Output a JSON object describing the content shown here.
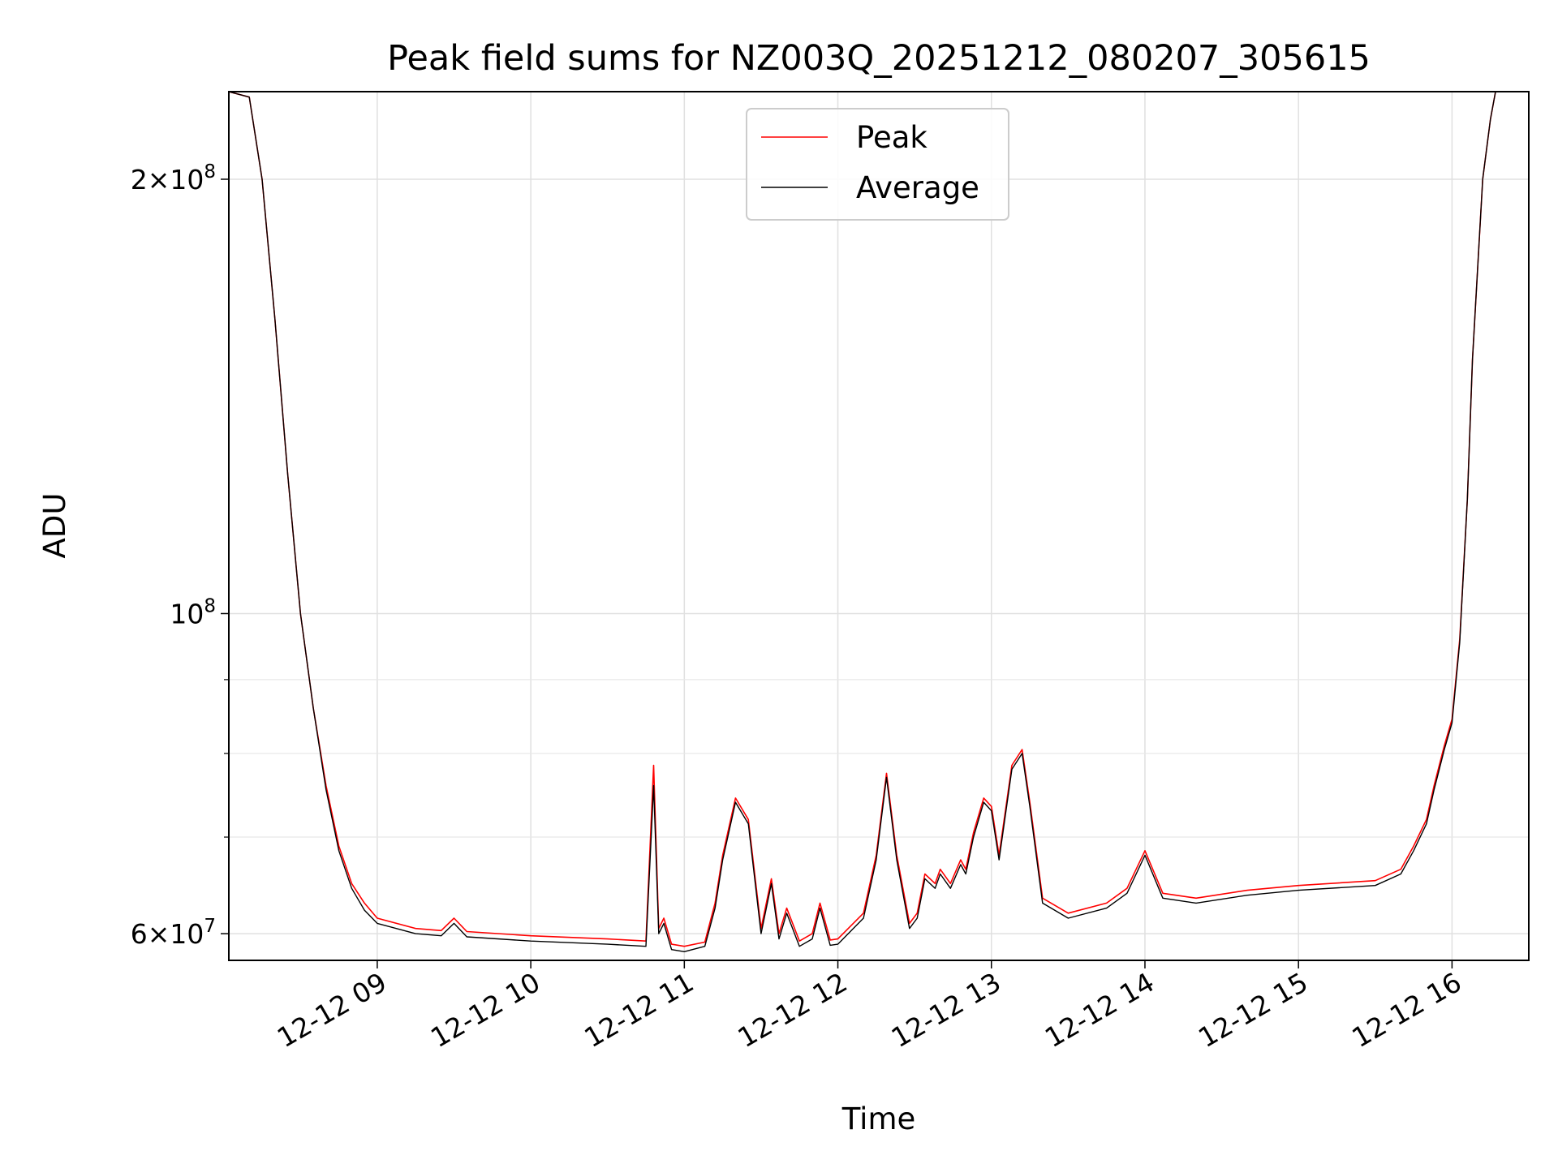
{
  "chart_data": {
    "type": "line",
    "title": "Peak field sums for NZ003Q_20251212_080207_305615",
    "xlabel": "Time",
    "ylabel": "ADU",
    "yscale": "log",
    "xlim": [
      "2025-12-12 08:02",
      "2025-12-12 16:30"
    ],
    "ylim": [
      57500000,
      230000000
    ],
    "grid": true,
    "legend_position": "upper center",
    "x_ticks": [
      "12-12 09",
      "12-12 10",
      "12-12 11",
      "12-12 12",
      "12-12 13",
      "12-12 14",
      "12-12 15",
      "12-12 16"
    ],
    "y_ticks": [
      {
        "value": 60000000,
        "mantissa": "6",
        "exponent": "7"
      },
      {
        "value": 100000000,
        "mantissa": "",
        "exponent": "8"
      },
      {
        "value": 200000000,
        "mantissa": "2",
        "exponent": "8"
      }
    ],
    "x": [
      "2025-12-12 08:02",
      "2025-12-12 08:10",
      "2025-12-12 08:15",
      "2025-12-12 08:20",
      "2025-12-12 08:25",
      "2025-12-12 08:30",
      "2025-12-12 08:35",
      "2025-12-12 08:40",
      "2025-12-12 08:45",
      "2025-12-12 08:50",
      "2025-12-12 08:55",
      "2025-12-12 09:00",
      "2025-12-12 09:15",
      "2025-12-12 09:25",
      "2025-12-12 09:30",
      "2025-12-12 09:35",
      "2025-12-12 10:00",
      "2025-12-12 10:30",
      "2025-12-12 10:45",
      "2025-12-12 10:48",
      "2025-12-12 10:50",
      "2025-12-12 10:52",
      "2025-12-12 10:55",
      "2025-12-12 11:00",
      "2025-12-12 11:08",
      "2025-12-12 11:12",
      "2025-12-12 11:15",
      "2025-12-12 11:20",
      "2025-12-12 11:25",
      "2025-12-12 11:30",
      "2025-12-12 11:34",
      "2025-12-12 11:37",
      "2025-12-12 11:40",
      "2025-12-12 11:45",
      "2025-12-12 11:50",
      "2025-12-12 11:53",
      "2025-12-12 11:57",
      "2025-12-12 12:00",
      "2025-12-12 12:10",
      "2025-12-12 12:15",
      "2025-12-12 12:19",
      "2025-12-12 12:23",
      "2025-12-12 12:28",
      "2025-12-12 12:31",
      "2025-12-12 12:34",
      "2025-12-12 12:38",
      "2025-12-12 12:40",
      "2025-12-12 12:44",
      "2025-12-12 12:48",
      "2025-12-12 12:50",
      "2025-12-12 12:53",
      "2025-12-12 12:57",
      "2025-12-12 13:00",
      "2025-12-12 13:03",
      "2025-12-12 13:08",
      "2025-12-12 13:12",
      "2025-12-12 13:15",
      "2025-12-12 13:20",
      "2025-12-12 13:30",
      "2025-12-12 13:45",
      "2025-12-12 13:53",
      "2025-12-12 14:00",
      "2025-12-12 14:07",
      "2025-12-12 14:20",
      "2025-12-12 14:40",
      "2025-12-12 15:00",
      "2025-12-12 15:30",
      "2025-12-12 15:40",
      "2025-12-12 15:45",
      "2025-12-12 15:50",
      "2025-12-12 15:53",
      "2025-12-12 15:57",
      "2025-12-12 16:00",
      "2025-12-12 16:03",
      "2025-12-12 16:06",
      "2025-12-12 16:08",
      "2025-12-12 16:12",
      "2025-12-12 16:15",
      "2025-12-12 16:17",
      "2025-12-12 16:30"
    ],
    "series": [
      {
        "name": "Peak",
        "color": "#ff0000",
        "values": [
          230000000,
          228000000,
          200000000,
          160000000,
          125000000,
          100000000,
          86000000,
          76000000,
          69000000,
          65000000,
          63000000,
          61500000,
          60500000,
          60300000,
          61500000,
          60200000,
          59800000,
          59500000,
          59300000,
          78500000,
          60500000,
          61500000,
          59000000,
          58800000,
          59200000,
          63000000,
          68000000,
          74500000,
          72000000,
          60500000,
          65500000,
          60000000,
          62500000,
          59300000,
          60000000,
          63000000,
          59400000,
          59500000,
          62000000,
          68000000,
          77500000,
          68000000,
          61000000,
          62000000,
          66000000,
          65000000,
          66500000,
          65000000,
          67500000,
          66500000,
          70500000,
          74500000,
          73500000,
          68000000,
          78500000,
          80500000,
          74000000,
          63500000,
          62000000,
          63000000,
          64500000,
          68500000,
          64000000,
          63500000,
          64300000,
          64800000,
          65300000,
          66500000,
          69000000,
          72000000,
          76000000,
          81000000,
          84500000,
          96000000,
          120000000,
          150000000,
          200000000,
          220000000,
          230000000,
          230000000
        ]
      },
      {
        "name": "Average",
        "color": "#000000",
        "values": [
          230000000,
          228000000,
          200000000,
          160000000,
          125000000,
          100000000,
          86000000,
          75500000,
          68500000,
          64500000,
          62300000,
          61000000,
          60000000,
          59800000,
          61000000,
          59700000,
          59300000,
          59000000,
          58800000,
          76000000,
          60000000,
          61000000,
          58500000,
          58300000,
          58800000,
          62500000,
          67500000,
          74000000,
          71500000,
          60000000,
          65000000,
          59500000,
          62000000,
          58800000,
          59500000,
          62500000,
          58900000,
          59000000,
          61500000,
          67500000,
          77000000,
          67500000,
          60500000,
          61500000,
          65500000,
          64500000,
          66000000,
          64500000,
          67000000,
          66000000,
          70000000,
          74000000,
          73000000,
          67500000,
          78000000,
          80000000,
          73500000,
          63000000,
          61500000,
          62500000,
          64000000,
          68000000,
          63500000,
          63000000,
          63800000,
          64300000,
          64800000,
          66000000,
          68500000,
          71500000,
          75500000,
          80500000,
          84000000,
          95500000,
          120000000,
          150000000,
          200000000,
          220000000,
          230000000,
          230000000
        ]
      }
    ]
  }
}
